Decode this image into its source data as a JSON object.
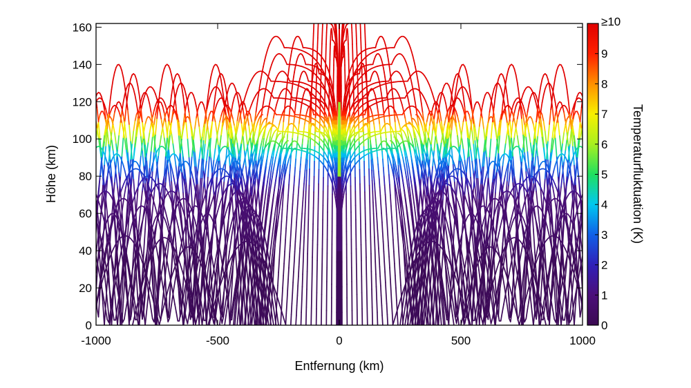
{
  "chart_data": {
    "type": "line",
    "title": "",
    "xlabel": "Entfernung (km)",
    "ylabel": "Höhe (km)",
    "xlim": [
      -1000,
      1000
    ],
    "ylim": [
      0,
      162
    ],
    "x_ticks": [
      -1000,
      -500,
      0,
      500,
      1000
    ],
    "x_tick_labels": [
      "-1000",
      "-500",
      "0",
      "500",
      "1000"
    ],
    "y_ticks": [
      0,
      20,
      40,
      60,
      80,
      100,
      120,
      140,
      160
    ],
    "y_tick_labels": [
      "0",
      "20",
      "40",
      "60",
      "80",
      "100",
      "120",
      "140",
      "160"
    ],
    "grid": false,
    "description_series": "Gravity-wave ray paths launched from the origin (0 km, 0 km), symmetric about x = 0; line color encodes temperature fluctuation amplitude.",
    "colorbar": {
      "label": "Temperaturfluktuation (K)",
      "range": [
        0,
        10
      ],
      "ticks": [
        0,
        1,
        2,
        3,
        4,
        5,
        6,
        7,
        8,
        9
      ],
      "tick_labels": [
        "0",
        "1",
        "2",
        "3",
        "4",
        "5",
        "6",
        "7",
        "8",
        "9"
      ],
      "top_label": "≥10",
      "colors": [
        "#3b0a52",
        "#4b0f7a",
        "#3020b8",
        "#1060e8",
        "#00c8f0",
        "#20e060",
        "#a8f020",
        "#f8f000",
        "#ff9000",
        "#ff2000",
        "#e00000"
      ]
    },
    "series": [
      {
        "group": "central-fan",
        "x_range": [
          -310,
          310
        ],
        "apex_height": 162
      },
      {
        "group": "outer-rays",
        "x_range": [
          -1000,
          1000
        ],
        "apex_height_range": [
          20,
          140
        ]
      },
      {
        "group": "low-arcs",
        "x_range": [
          -1000,
          1000
        ],
        "apex_height_range": [
          35,
          50
        ]
      }
    ]
  },
  "colors": {
    "axis": "#000000",
    "background": "#ffffff"
  }
}
